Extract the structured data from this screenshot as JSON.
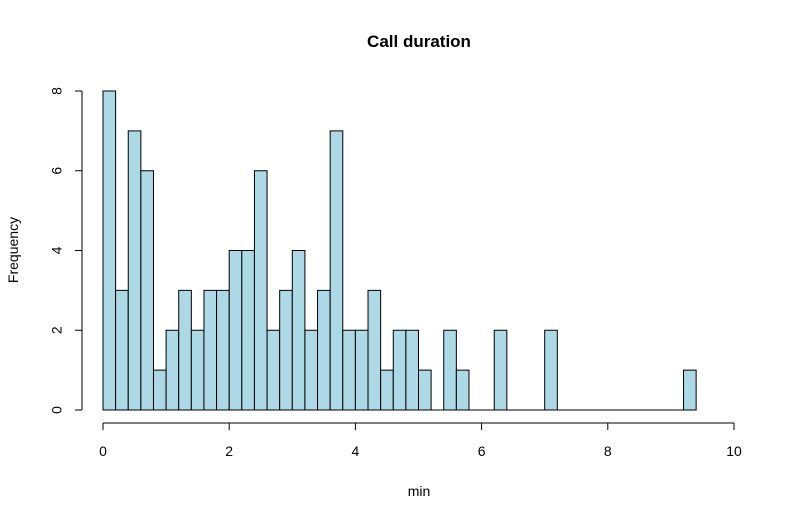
{
  "chart_data": {
    "type": "bar",
    "subtype": "histogram",
    "title": "Call duration",
    "xlabel": "min",
    "ylabel": "Frequency",
    "bin_width": 0.2,
    "bin_starts": [
      0.0,
      0.2,
      0.4,
      0.6,
      0.8,
      1.0,
      1.2,
      1.4,
      1.6,
      1.8,
      2.0,
      2.2,
      2.4,
      2.6,
      2.8,
      3.0,
      3.2,
      3.4,
      3.6,
      3.8,
      4.0,
      4.2,
      4.4,
      4.6,
      4.8,
      5.0,
      5.2,
      5.4,
      5.6,
      5.8,
      6.0,
      6.2,
      6.4,
      6.6,
      6.8,
      7.0,
      7.2,
      7.4,
      7.6,
      7.8,
      8.0,
      8.2,
      8.4,
      8.6,
      8.8,
      9.0,
      9.2
    ],
    "values": [
      8,
      3,
      7,
      6,
      1,
      2,
      3,
      2,
      3,
      3,
      4,
      4,
      6,
      2,
      3,
      4,
      2,
      3,
      7,
      2,
      2,
      3,
      1,
      2,
      2,
      1,
      0,
      2,
      1,
      0,
      0,
      2,
      0,
      0,
      0,
      2,
      0,
      0,
      0,
      0,
      0,
      0,
      0,
      0,
      0,
      0,
      1
    ],
    "xlim": [
      0,
      10
    ],
    "ylim": [
      0,
      8
    ],
    "x_ticks": [
      0,
      2,
      4,
      6,
      8,
      10
    ],
    "y_ticks": [
      0,
      2,
      4,
      6,
      8
    ],
    "bar_color": "#add8e6",
    "grid": false
  }
}
